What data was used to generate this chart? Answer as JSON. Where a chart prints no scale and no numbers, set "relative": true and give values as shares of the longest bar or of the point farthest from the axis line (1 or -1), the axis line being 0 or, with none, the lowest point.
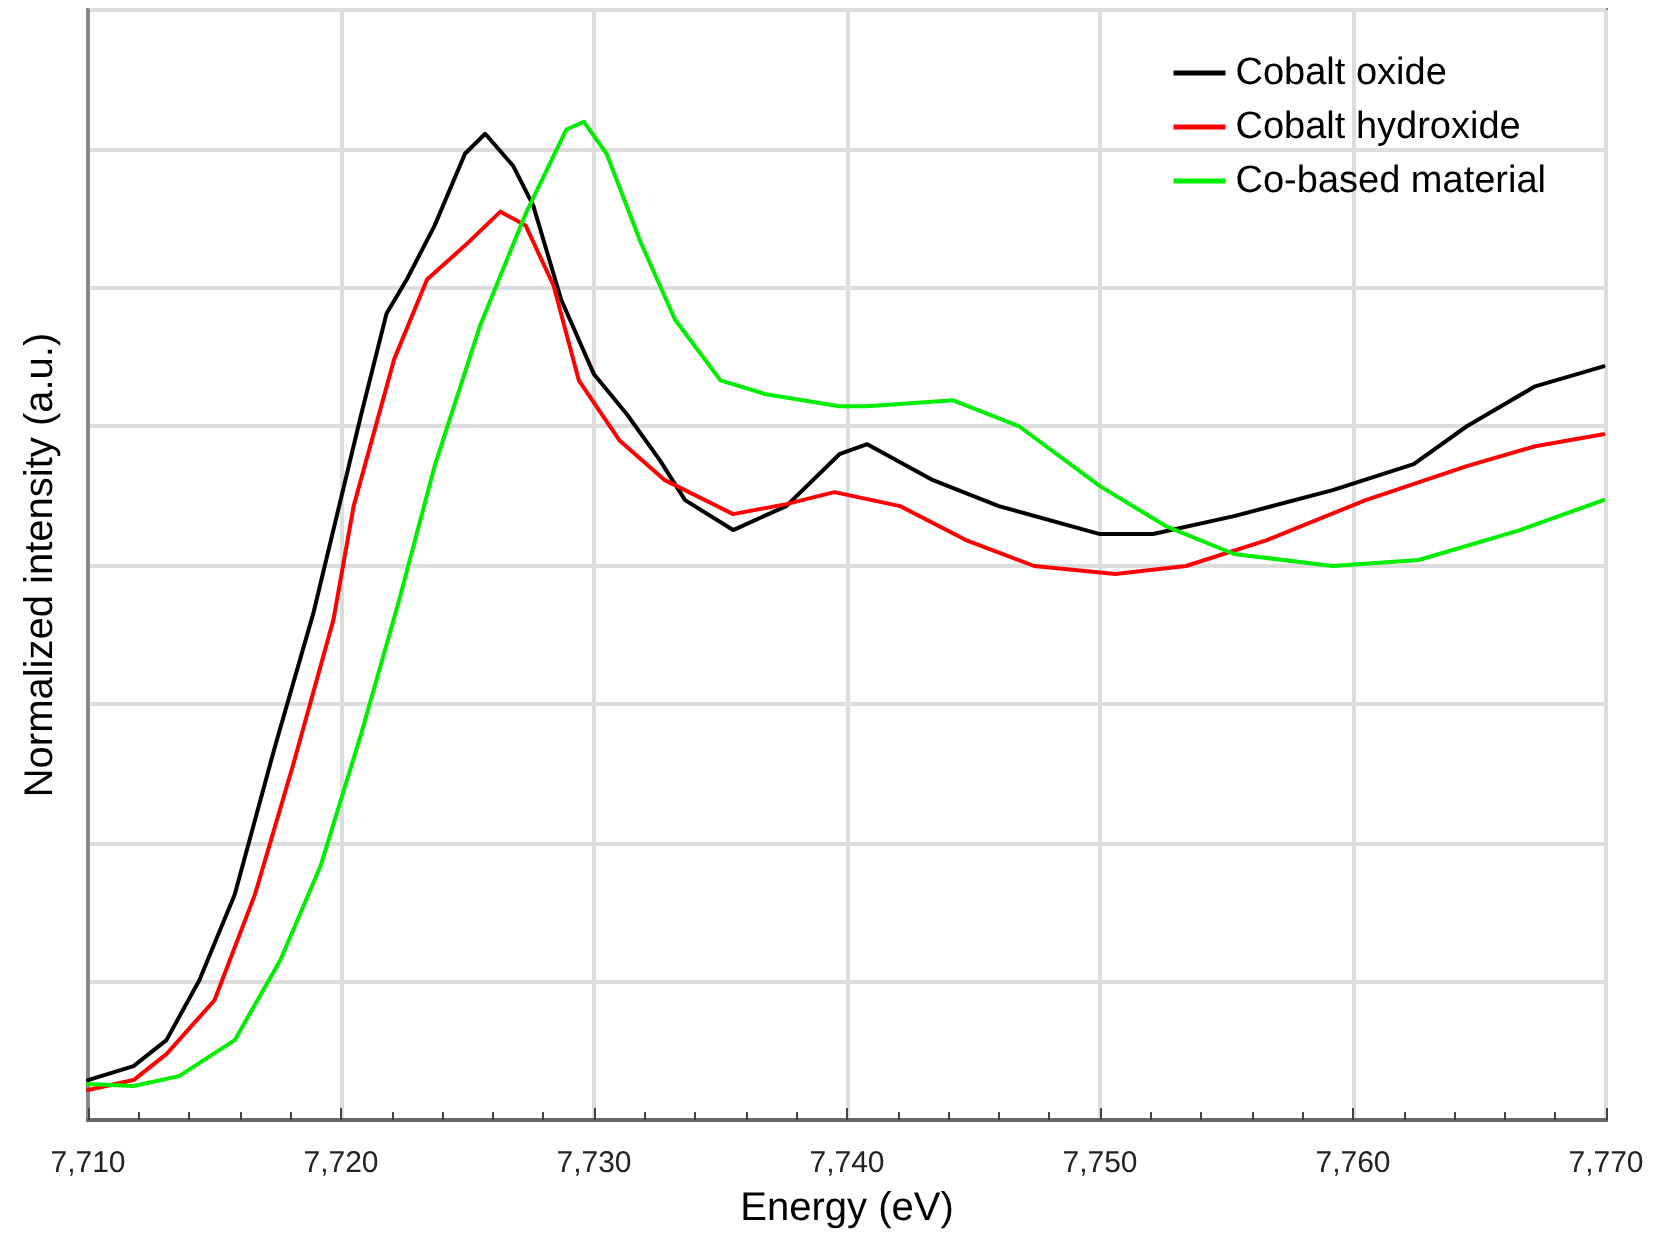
{
  "chart_data": {
    "type": "line",
    "xlabel": "Energy (eV)",
    "ylabel": "Normalized intensity (a.u.)",
    "relative": true,
    "grid": true,
    "legend": "top right",
    "marker": "none",
    "line_style": "solid",
    "xlim": [
      7710,
      7770
    ],
    "xticks": [
      {
        "value": 7710,
        "label": "7,710"
      },
      {
        "value": 7720,
        "label": "7,720"
      },
      {
        "value": 7730,
        "label": "7,730"
      },
      {
        "value": 7740,
        "label": "7,740"
      },
      {
        "value": 7750,
        "label": "7,750"
      },
      {
        "value": 7760,
        "label": "7,760"
      },
      {
        "value": 7770,
        "label": "7,770"
      }
    ],
    "series": [
      {
        "name": "Cobalt oxide",
        "color": "#000000",
        "x": [
          7710,
          7711.8,
          7713.1,
          7714.4,
          7715.8,
          7717.4,
          7718.9,
          7720.8,
          7721.8,
          7722.6,
          7723.7,
          7724.9,
          7725.7,
          7726.8,
          7727.6,
          7728.7,
          7730.0,
          7731.3,
          7732.6,
          7733.6,
          7735.5,
          7737.6,
          7739.7,
          7740.8,
          7743.4,
          7746.0,
          7750.0,
          7752.1,
          7755.3,
          7759.2,
          7762.4,
          7764.5,
          7767.2,
          7769.9
        ],
        "values": [
          0.04,
          0.054,
          0.08,
          0.14,
          0.226,
          0.375,
          0.507,
          0.707,
          0.808,
          0.842,
          0.896,
          0.968,
          0.988,
          0.956,
          0.916,
          0.822,
          0.747,
          0.707,
          0.661,
          0.621,
          0.591,
          0.615,
          0.667,
          0.677,
          0.641,
          0.615,
          0.587,
          0.587,
          0.605,
          0.631,
          0.657,
          0.695,
          0.735,
          0.755
        ]
      },
      {
        "name": "Cobalt hydroxide",
        "color": "#ff0000",
        "x": [
          7710,
          7711.8,
          7713.1,
          7715.0,
          7716.6,
          7718.1,
          7719.7,
          7720.5,
          7722.1,
          7723.4,
          7724.9,
          7726.3,
          7727.3,
          7728.4,
          7729.4,
          7731.0,
          7732.8,
          7735.5,
          7737.6,
          7739.5,
          7742.1,
          7744.7,
          7747.4,
          7750.6,
          7753.4,
          7756.6,
          7760.5,
          7764.5,
          7767.2,
          7769.9
        ],
        "values": [
          0.03,
          0.04,
          0.066,
          0.12,
          0.226,
          0.355,
          0.501,
          0.615,
          0.762,
          0.842,
          0.876,
          0.91,
          0.896,
          0.836,
          0.741,
          0.681,
          0.641,
          0.607,
          0.617,
          0.629,
          0.615,
          0.581,
          0.555,
          0.547,
          0.555,
          0.581,
          0.621,
          0.655,
          0.675,
          0.687
        ]
      },
      {
        "name": "Co-based material",
        "color": "#00ee00",
        "x": [
          7710,
          7711.8,
          7713.6,
          7715.8,
          7717.6,
          7719.2,
          7720.8,
          7722.3,
          7723.7,
          7725.5,
          7727.3,
          7728.9,
          7729.6,
          7730.5,
          7731.8,
          7733.2,
          7735.0,
          7736.8,
          7739.7,
          7740.8,
          7744.2,
          7746.8,
          7750.0,
          7752.6,
          7755.3,
          7759.2,
          7762.6,
          7766.6,
          7769.9
        ],
        "values": [
          0.036,
          0.034,
          0.044,
          0.08,
          0.16,
          0.255,
          0.387,
          0.521,
          0.655,
          0.796,
          0.908,
          0.992,
          1.0,
          0.968,
          0.882,
          0.802,
          0.741,
          0.727,
          0.715,
          0.715,
          0.721,
          0.695,
          0.635,
          0.595,
          0.567,
          0.555,
          0.561,
          0.591,
          0.621
        ]
      }
    ]
  }
}
